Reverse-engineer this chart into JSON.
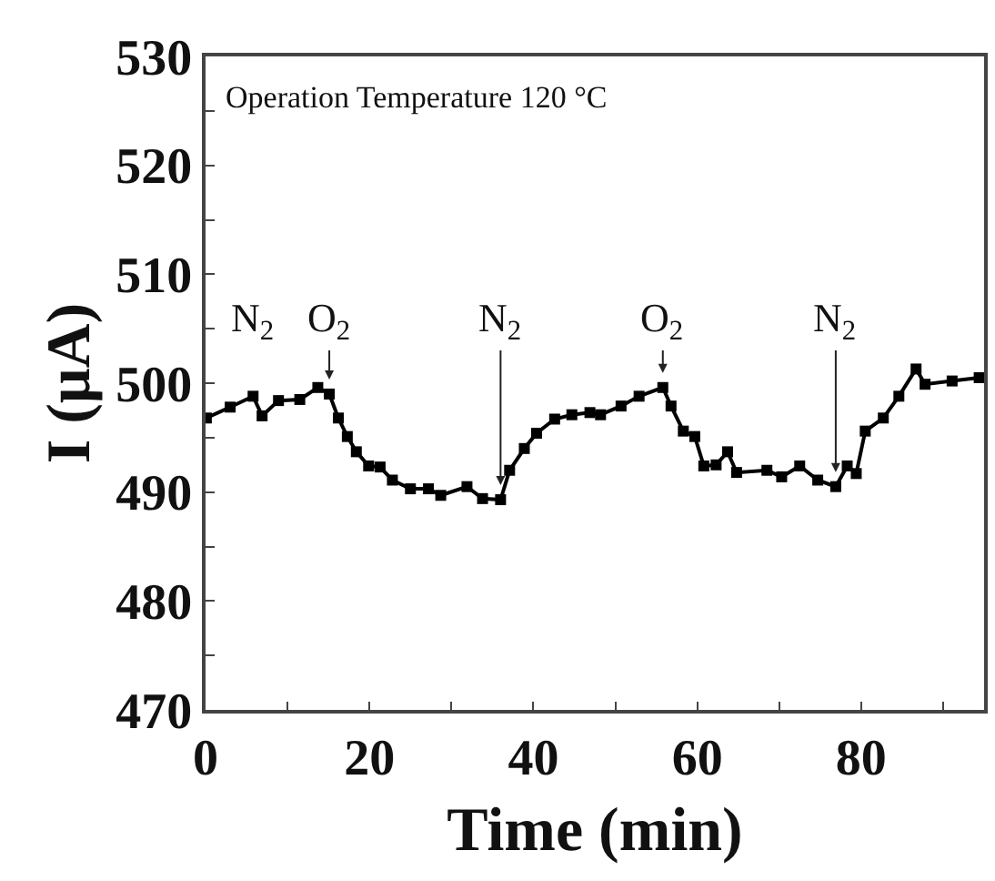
{
  "chart_data": {
    "type": "line",
    "xlabel": "Time (min)",
    "ylabel": "I (μA)",
    "x": [
      0.1,
      3,
      5.8,
      6.9,
      8.9,
      11.5,
      13.7,
      15.1,
      16.2,
      17.3,
      18.4,
      19.9,
      21.3,
      22.8,
      25,
      27.2,
      28.7,
      31.9,
      33.8,
      36,
      37.1,
      38.9,
      40.4,
      42.6,
      44.7,
      46.9,
      48.2,
      50.7,
      52.9,
      55.8,
      56.8,
      58.3,
      59.7,
      60.8,
      62.3,
      63.7,
      64.8,
      68.5,
      70.3,
      72.5,
      74.7,
      76.9,
      78.3,
      79.4,
      80.5,
      82.7,
      84.6,
      86.7,
      87.8,
      91.1,
      94.4
    ],
    "series": [
      {
        "color": "#000000",
        "values": [
          496.8,
          497.8,
          498.8,
          497,
          498.4,
          498.5,
          499.6,
          499,
          496.8,
          495.1,
          493.7,
          492.4,
          492.3,
          491.1,
          490.3,
          490.3,
          489.7,
          490.5,
          489.4,
          489.3,
          492,
          494,
          495.4,
          496.7,
          497.1,
          497.3,
          497.1,
          497.9,
          498.8,
          499.6,
          497.9,
          495.6,
          495.1,
          492.4,
          492.5,
          493.7,
          491.8,
          492,
          491.4,
          492.4,
          491.1,
          490.5,
          492.4,
          491.7,
          495.6,
          496.8,
          498.8,
          501.3,
          499.9,
          500.2,
          500.5
        ]
      }
    ],
    "xlim": [
      0,
      95
    ],
    "ylim": [
      470,
      530
    ],
    "xticks": [
      0,
      {
        "value": 10,
        "label": null
      },
      20,
      {
        "value": 30,
        "label": null
      },
      40,
      {
        "value": 50,
        "label": null
      },
      60,
      {
        "value": 70,
        "label": null
      },
      80,
      {
        "value": 90,
        "label": null
      }
    ],
    "yticks": [
      470,
      {
        "value": 475,
        "label": null
      },
      480,
      {
        "value": 485,
        "label": null
      },
      490,
      {
        "value": 495,
        "label": null
      },
      500,
      {
        "value": 505,
        "label": null
      },
      510,
      {
        "value": 515,
        "label": null
      },
      520,
      {
        "value": 525,
        "label": null
      },
      530
    ],
    "annotations": [
      "Operation Temperature 120 °C",
      {
        "text": "N$_{2}$",
        "x": 5.8,
        "y": 498.8
      },
      {
        "text": "O$_{2}$",
        "x": 15.1,
        "y": 499
      },
      {
        "text": "N$_{2}$",
        "x": 36,
        "y": 489.3
      },
      {
        "text": "O$_{2}$",
        "x": 55.8,
        "y": 499.6
      },
      {
        "text": "N$_{2}$",
        "x": 76.9,
        "y": 490.5
      }
    ],
    "marker": "square",
    "line_style": "solid"
  }
}
